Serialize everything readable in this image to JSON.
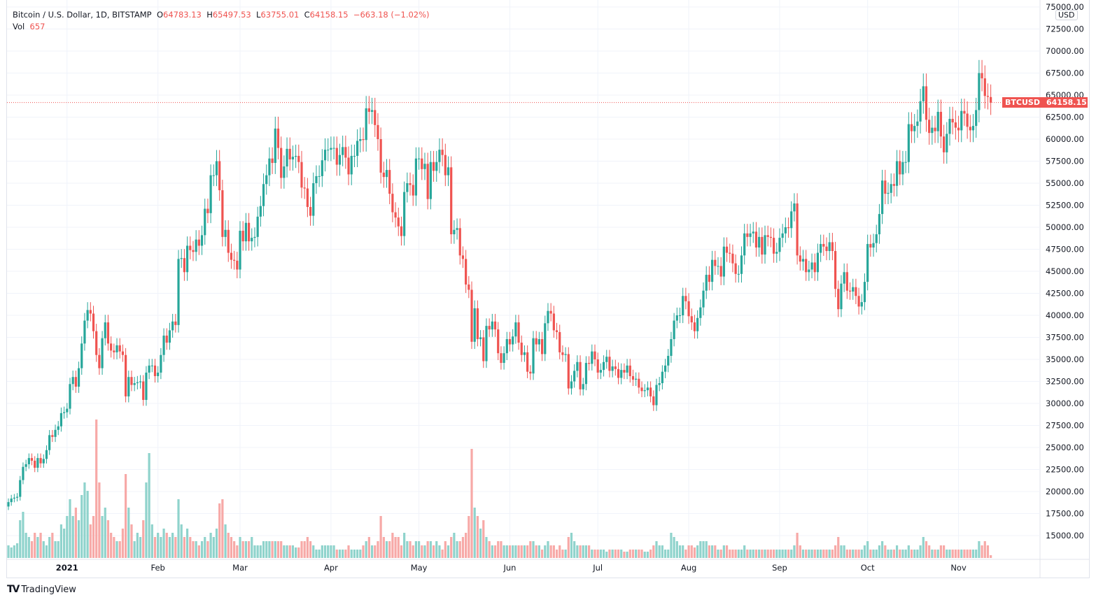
{
  "header": {
    "symbol": "Bitcoin / U.S. Dollar, 1D, BITSTAMP",
    "o_label": "O",
    "o": "64783.13",
    "h_label": "H",
    "h": "65497.53",
    "l_label": "L",
    "l": "63755.01",
    "c_label": "C",
    "c": "64158.15",
    "change": "−663.18 (−1.02%)",
    "vol_label": "Vol",
    "vol": "657"
  },
  "price_axis": {
    "currency": "USD",
    "symbol_tag": "BTCUSD",
    "last_price": "64158.15"
  },
  "brand": "TradingView",
  "colors": {
    "up": "#26a69a",
    "down": "#ef5350",
    "up_vol": "#8fd3cc",
    "down_vol": "#f7a9a7",
    "grid": "#f0f3fa"
  },
  "chart_data": {
    "type": "candlestick",
    "title": "Bitcoin / U.S. Dollar, 1D, BITSTAMP",
    "start_date": "2020-12-12",
    "ylim": [
      15000,
      75000
    ],
    "yticks": [
      "75000.00",
      "72500.00",
      "70000.00",
      "67500.00",
      "65000.00",
      "62500.00",
      "60000.00",
      "57500.00",
      "55000.00",
      "52500.00",
      "50000.00",
      "47500.00",
      "45000.00",
      "42500.00",
      "40000.00",
      "37500.00",
      "35000.00",
      "32500.00",
      "30000.00",
      "27500.00",
      "25000.00",
      "22500.00",
      "20000.00",
      "17500.00",
      "15000.00"
    ],
    "xticks": [
      {
        "label": "2021",
        "date": "2021-01-01"
      },
      {
        "label": "Feb",
        "date": "2021-02-01"
      },
      {
        "label": "Mar",
        "date": "2021-03-01"
      },
      {
        "label": "Apr",
        "date": "2021-04-01"
      },
      {
        "label": "May",
        "date": "2021-05-01"
      },
      {
        "label": "Jun",
        "date": "2021-06-01"
      },
      {
        "label": "Jul",
        "date": "2021-07-01"
      },
      {
        "label": "Aug",
        "date": "2021-08-01"
      },
      {
        "label": "Sep",
        "date": "2021-09-01"
      },
      {
        "label": "Oct",
        "date": "2021-10-01"
      },
      {
        "label": "Nov",
        "date": "2021-11-01"
      }
    ],
    "first_open_k": 18.3,
    "last_open_k": 64.78,
    "close_k": [
      18.8,
      19.2,
      19.3,
      19.4,
      21.3,
      22.8,
      23.1,
      23.8,
      23.5,
      22.7,
      23.8,
      23.2,
      23.7,
      24.7,
      26.4,
      26.2,
      27.0,
      27.4,
      28.9,
      29.0,
      29.4,
      32.2,
      33.0,
      31.9,
      34.0,
      36.8,
      39.4,
      40.6,
      40.2,
      38.2,
      35.5,
      34.0,
      37.4,
      39.2,
      36.8,
      36.0,
      35.8,
      36.6,
      35.9,
      35.5,
      30.8,
      33.0,
      32.1,
      32.3,
      32.4,
      32.5,
      30.4,
      33.5,
      34.3,
      34.3,
      33.1,
      33.5,
      35.5,
      37.7,
      36.9,
      38.3,
      39.3,
      38.9,
      46.4,
      46.5,
      44.9,
      47.9,
      47.4,
      47.2,
      48.6,
      47.9,
      49.1,
      52.1,
      51.6,
      55.9,
      55.9,
      57.5,
      54.2,
      48.9,
      49.7,
      47.1,
      46.3,
      46.2,
      45.2,
      49.6,
      48.4,
      50.5,
      48.4,
      48.8,
      48.9,
      51.2,
      52.4,
      54.9,
      55.9,
      57.8,
      57.3,
      61.2,
      59.0,
      55.6,
      56.9,
      58.9,
      57.7,
      58.0,
      58.1,
      57.4,
      54.5,
      54.4,
      52.3,
      51.3,
      55.0,
      55.8,
      55.8,
      57.6,
      58.8,
      58.8,
      59.0,
      59.0,
      57.1,
      58.2,
      59.1,
      57.9,
      56.0,
      58.1,
      58.1,
      59.8,
      60.0,
      59.9,
      63.5,
      63.1,
      63.3,
      61.6,
      60.0,
      56.2,
      55.7,
      56.5,
      53.8,
      51.7,
      51.1,
      50.1,
      49.0,
      54.0,
      55.0,
      54.8,
      53.6,
      57.8,
      57.8,
      56.6,
      57.2,
      53.2,
      57.4,
      56.4,
      57.4,
      58.8,
      58.2,
      55.9,
      56.8,
      49.2,
      49.7,
      49.9,
      46.8,
      46.4,
      43.5,
      42.9,
      37.0,
      40.8,
      37.3,
      37.5,
      34.8,
      38.8,
      38.4,
      39.3,
      38.4,
      35.7,
      34.6,
      35.7,
      37.3,
      36.7,
      37.6,
      39.2,
      36.9,
      35.5,
      35.8,
      33.6,
      33.4,
      37.4,
      36.7,
      37.3,
      35.6,
      39.1,
      40.5,
      40.2,
      38.3,
      38.1,
      35.8,
      35.5,
      35.6,
      31.7,
      32.5,
      33.7,
      34.7,
      31.6,
      32.2,
      34.6,
      34.5,
      35.9,
      35.0,
      33.5,
      33.8,
      34.7,
      35.3,
      33.7,
      34.2,
      33.9,
      32.9,
      33.8,
      33.5,
      34.3,
      33.1,
      32.7,
      32.8,
      31.8,
      31.4,
      31.5,
      31.8,
      30.8,
      29.8,
      32.1,
      32.3,
      33.6,
      34.3,
      35.4,
      37.3,
      39.4,
      40.0,
      40.0,
      42.2,
      41.6,
      39.9,
      39.2,
      38.2,
      39.7,
      40.9,
      42.8,
      44.6,
      43.8,
      46.3,
      45.6,
      45.6,
      44.4,
      47.8,
      47.1,
      47.0,
      45.9,
      44.7,
      44.7,
      46.8,
      49.3,
      48.9,
      49.3,
      49.5,
      47.7,
      48.9,
      46.9,
      49.1,
      48.9,
      48.8,
      47.0,
      47.2,
      48.8,
      49.3,
      50.0,
      49.9,
      51.8,
      52.7,
      46.8,
      46.1,
      46.4,
      44.9,
      45.2,
      46.0,
      44.9,
      47.1,
      48.1,
      47.8,
      47.3,
      48.3,
      47.3,
      43.0,
      40.7,
      43.6,
      44.9,
      42.8,
      42.7,
      43.2,
      42.2,
      41.0,
      41.5,
      43.8,
      48.1,
      47.7,
      48.2,
      49.2,
      51.5,
      55.3,
      53.8,
      53.9,
      54.9,
      54.7,
      57.5,
      56.0,
      57.4,
      57.4,
      61.7,
      60.9,
      61.5,
      62.0,
      64.3,
      66.0,
      62.2,
      60.7,
      61.3,
      60.9,
      63.1,
      60.3,
      58.5,
      60.6,
      62.3,
      61.9,
      61.3,
      61.0,
      63.2,
      62.9,
      61.4,
      61.0,
      61.5,
      63.3,
      67.5,
      66.9,
      64.9,
      64.8,
      64.158
    ],
    "volume_k": [
      3,
      2.5,
      3,
      3.5,
      9,
      11,
      6,
      5,
      4,
      6,
      5,
      6,
      4,
      3,
      5,
      6,
      4,
      4,
      8,
      7,
      10,
      14,
      10,
      12,
      9,
      15,
      18,
      16,
      8,
      10,
      33,
      18,
      10,
      12,
      9,
      6,
      5,
      4,
      4,
      7,
      20,
      12,
      8,
      4,
      6,
      5,
      9,
      18,
      25,
      8,
      5,
      6,
      5,
      7,
      6,
      5,
      6,
      5,
      14,
      8,
      5,
      7,
      5,
      4,
      4,
      3,
      4,
      5,
      4,
      6,
      5,
      7,
      13,
      14,
      8,
      6,
      5,
      4,
      3,
      5,
      4,
      4,
      4,
      5,
      3,
      3,
      3,
      4,
      4,
      4,
      4,
      4,
      4,
      4,
      3,
      3,
      3,
      3,
      2.5,
      2.5,
      4,
      4,
      5,
      4,
      3,
      2,
      2,
      3,
      3,
      3,
      3,
      3,
      2,
      2,
      2,
      2,
      3,
      2,
      2,
      2,
      2,
      3,
      4,
      5,
      3,
      3,
      4,
      10,
      5,
      4,
      4,
      6,
      5,
      5,
      3,
      6,
      4,
      4,
      3,
      4,
      4,
      3,
      3,
      4,
      4,
      3,
      4,
      3,
      2,
      4,
      3,
      5,
      6,
      4,
      4,
      5,
      6,
      10,
      26,
      12,
      10,
      7,
      9,
      5,
      4,
      3,
      3,
      4,
      4,
      3,
      3,
      3,
      3,
      3,
      3,
      3,
      3,
      3,
      4,
      4,
      3,
      3,
      2,
      3,
      4,
      3,
      3,
      2,
      3,
      2,
      2,
      5,
      6,
      4,
      3,
      3,
      3,
      3,
      3,
      2,
      2,
      2,
      2,
      2,
      1.5,
      2,
      2,
      2,
      2,
      2,
      1.5,
      1.5,
      2,
      2,
      2,
      2,
      2,
      1.5,
      1.5,
      2,
      3,
      4,
      3,
      3,
      2,
      2,
      6,
      5,
      4,
      3,
      3,
      2,
      3,
      3,
      2.5,
      3,
      4,
      4,
      4,
      3,
      3,
      3,
      2,
      2,
      3,
      3,
      2,
      2,
      2,
      2,
      2,
      3,
      2,
      2,
      2,
      2,
      2,
      2,
      2,
      2,
      2,
      2,
      2,
      2,
      2,
      2,
      2,
      2,
      3,
      6,
      3,
      2,
      2,
      2,
      2,
      2,
      2,
      2,
      2,
      2,
      2,
      2,
      3,
      5,
      3,
      3,
      2,
      2,
      2,
      2,
      2,
      2,
      3,
      4,
      2,
      2,
      2,
      3,
      4,
      3,
      2,
      2,
      2,
      3,
      2,
      2,
      2,
      3,
      2,
      2,
      2,
      3,
      5,
      4,
      3,
      2,
      2,
      2,
      3,
      3,
      2,
      2,
      2,
      2,
      2,
      2,
      2,
      2,
      2,
      2,
      2,
      4,
      3,
      4,
      3,
      0.657
    ]
  }
}
